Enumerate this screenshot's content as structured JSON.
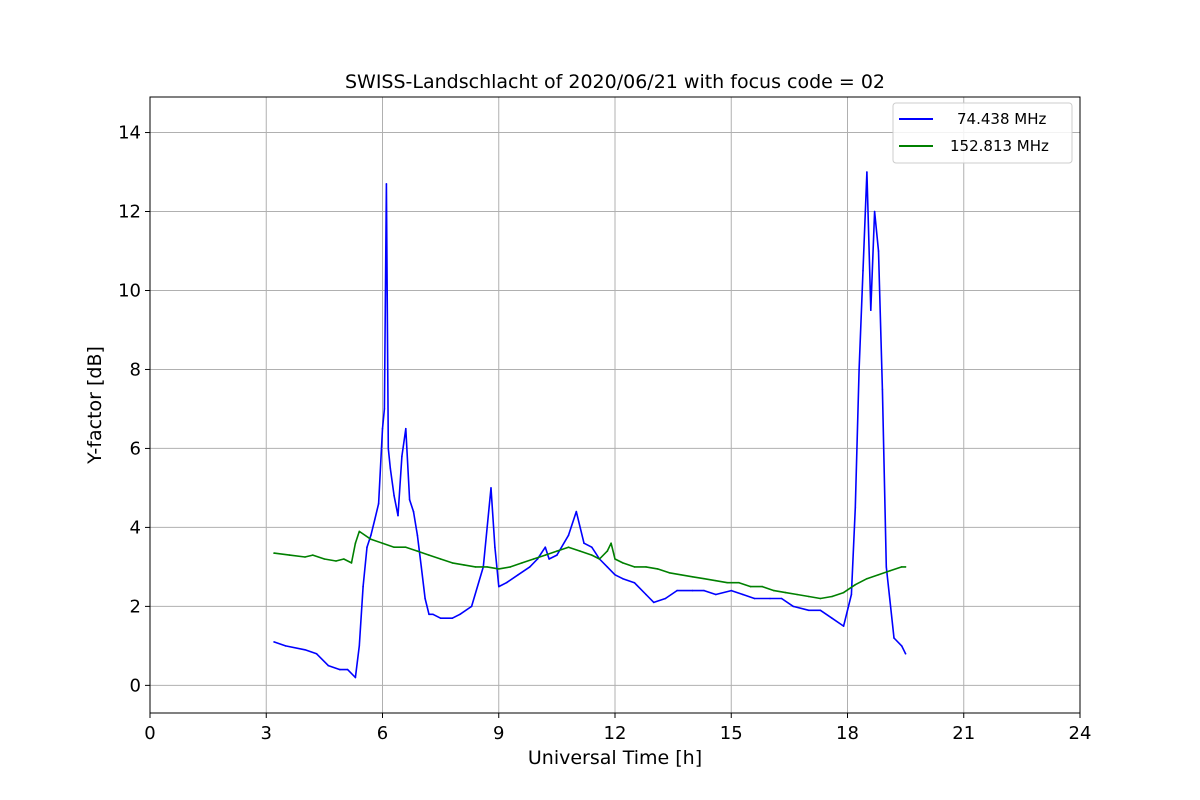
{
  "chart_data": {
    "type": "line",
    "title": "SWISS-Landschlacht of 2020/06/21 with focus code = 02",
    "xlabel": "Universal Time [h]",
    "ylabel": "Y-factor [dB]",
    "xlim": [
      0,
      24
    ],
    "ylim": [
      -0.7,
      14.9
    ],
    "xticks": [
      0,
      3,
      6,
      9,
      12,
      15,
      18,
      21,
      24
    ],
    "xtick_labels": [
      "0",
      "3",
      "6",
      "9",
      "12",
      "15",
      "18",
      "21",
      "24"
    ],
    "yticks": [
      0,
      2,
      4,
      6,
      8,
      10,
      12,
      14
    ],
    "ytick_labels": [
      "0",
      "2",
      "4",
      "6",
      "8",
      "10",
      "12",
      "14"
    ],
    "grid": true,
    "legend_position": "top-right",
    "series": [
      {
        "name": "74.438 MHz",
        "color": "#0000ff",
        "x": [
          3.2,
          3.5,
          4.0,
          4.3,
          4.6,
          4.9,
          5.1,
          5.3,
          5.4,
          5.5,
          5.6,
          5.7,
          5.8,
          5.9,
          6.0,
          6.05,
          6.1,
          6.15,
          6.2,
          6.3,
          6.4,
          6.5,
          6.6,
          6.7,
          6.8,
          6.9,
          7.0,
          7.1,
          7.2,
          7.3,
          7.5,
          7.8,
          8.0,
          8.3,
          8.6,
          8.8,
          8.9,
          9.0,
          9.2,
          9.5,
          9.8,
          10.0,
          10.2,
          10.3,
          10.5,
          10.8,
          11.0,
          11.2,
          11.4,
          11.6,
          11.8,
          12.0,
          12.2,
          12.5,
          12.8,
          13.0,
          13.3,
          13.6,
          14.0,
          14.3,
          14.6,
          15.0,
          15.3,
          15.6,
          16.0,
          16.3,
          16.6,
          17.0,
          17.3,
          17.6,
          17.9,
          18.1,
          18.2,
          18.3,
          18.4,
          18.5,
          18.6,
          18.7,
          18.8,
          18.9,
          19.0,
          19.2,
          19.4,
          19.5
        ],
        "y": [
          1.1,
          1.0,
          0.9,
          0.8,
          0.5,
          0.4,
          0.4,
          0.2,
          1.0,
          2.5,
          3.5,
          3.8,
          4.2,
          4.6,
          6.5,
          7.0,
          12.7,
          6.0,
          5.5,
          4.8,
          4.3,
          5.8,
          6.5,
          4.7,
          4.4,
          3.8,
          3.0,
          2.2,
          1.8,
          1.8,
          1.7,
          1.7,
          1.8,
          2.0,
          3.0,
          5.0,
          3.5,
          2.5,
          2.6,
          2.8,
          3.0,
          3.2,
          3.5,
          3.2,
          3.3,
          3.8,
          4.4,
          3.6,
          3.5,
          3.2,
          3.0,
          2.8,
          2.7,
          2.6,
          2.3,
          2.1,
          2.2,
          2.4,
          2.4,
          2.4,
          2.3,
          2.4,
          2.3,
          2.2,
          2.2,
          2.2,
          2.0,
          1.9,
          1.9,
          1.7,
          1.5,
          2.3,
          4.5,
          8.0,
          10.5,
          13.0,
          9.5,
          12.0,
          11.0,
          7.5,
          3.0,
          1.2,
          1.0,
          0.8
        ]
      },
      {
        "name": "152.813 MHz",
        "color": "#008000",
        "x": [
          3.2,
          3.6,
          4.0,
          4.2,
          4.5,
          4.8,
          5.0,
          5.2,
          5.3,
          5.4,
          5.7,
          6.0,
          6.3,
          6.6,
          6.9,
          7.2,
          7.5,
          7.8,
          8.1,
          8.4,
          8.7,
          9.0,
          9.3,
          9.6,
          9.9,
          10.2,
          10.5,
          10.8,
          11.1,
          11.4,
          11.6,
          11.8,
          11.9,
          12.0,
          12.2,
          12.5,
          12.8,
          13.1,
          13.4,
          13.7,
          14.0,
          14.3,
          14.6,
          14.9,
          15.2,
          15.5,
          15.8,
          16.1,
          16.4,
          16.7,
          17.0,
          17.3,
          17.6,
          17.9,
          18.2,
          18.5,
          18.8,
          19.1,
          19.4,
          19.5
        ],
        "y": [
          3.35,
          3.3,
          3.25,
          3.3,
          3.2,
          3.15,
          3.2,
          3.1,
          3.6,
          3.9,
          3.7,
          3.6,
          3.5,
          3.5,
          3.4,
          3.3,
          3.2,
          3.1,
          3.05,
          3.0,
          3.0,
          2.95,
          3.0,
          3.1,
          3.2,
          3.3,
          3.4,
          3.5,
          3.4,
          3.3,
          3.2,
          3.4,
          3.6,
          3.2,
          3.1,
          3.0,
          3.0,
          2.95,
          2.85,
          2.8,
          2.75,
          2.7,
          2.65,
          2.6,
          2.6,
          2.5,
          2.5,
          2.4,
          2.35,
          2.3,
          2.25,
          2.2,
          2.25,
          2.35,
          2.55,
          2.7,
          2.8,
          2.9,
          3.0,
          3.0
        ]
      }
    ]
  }
}
